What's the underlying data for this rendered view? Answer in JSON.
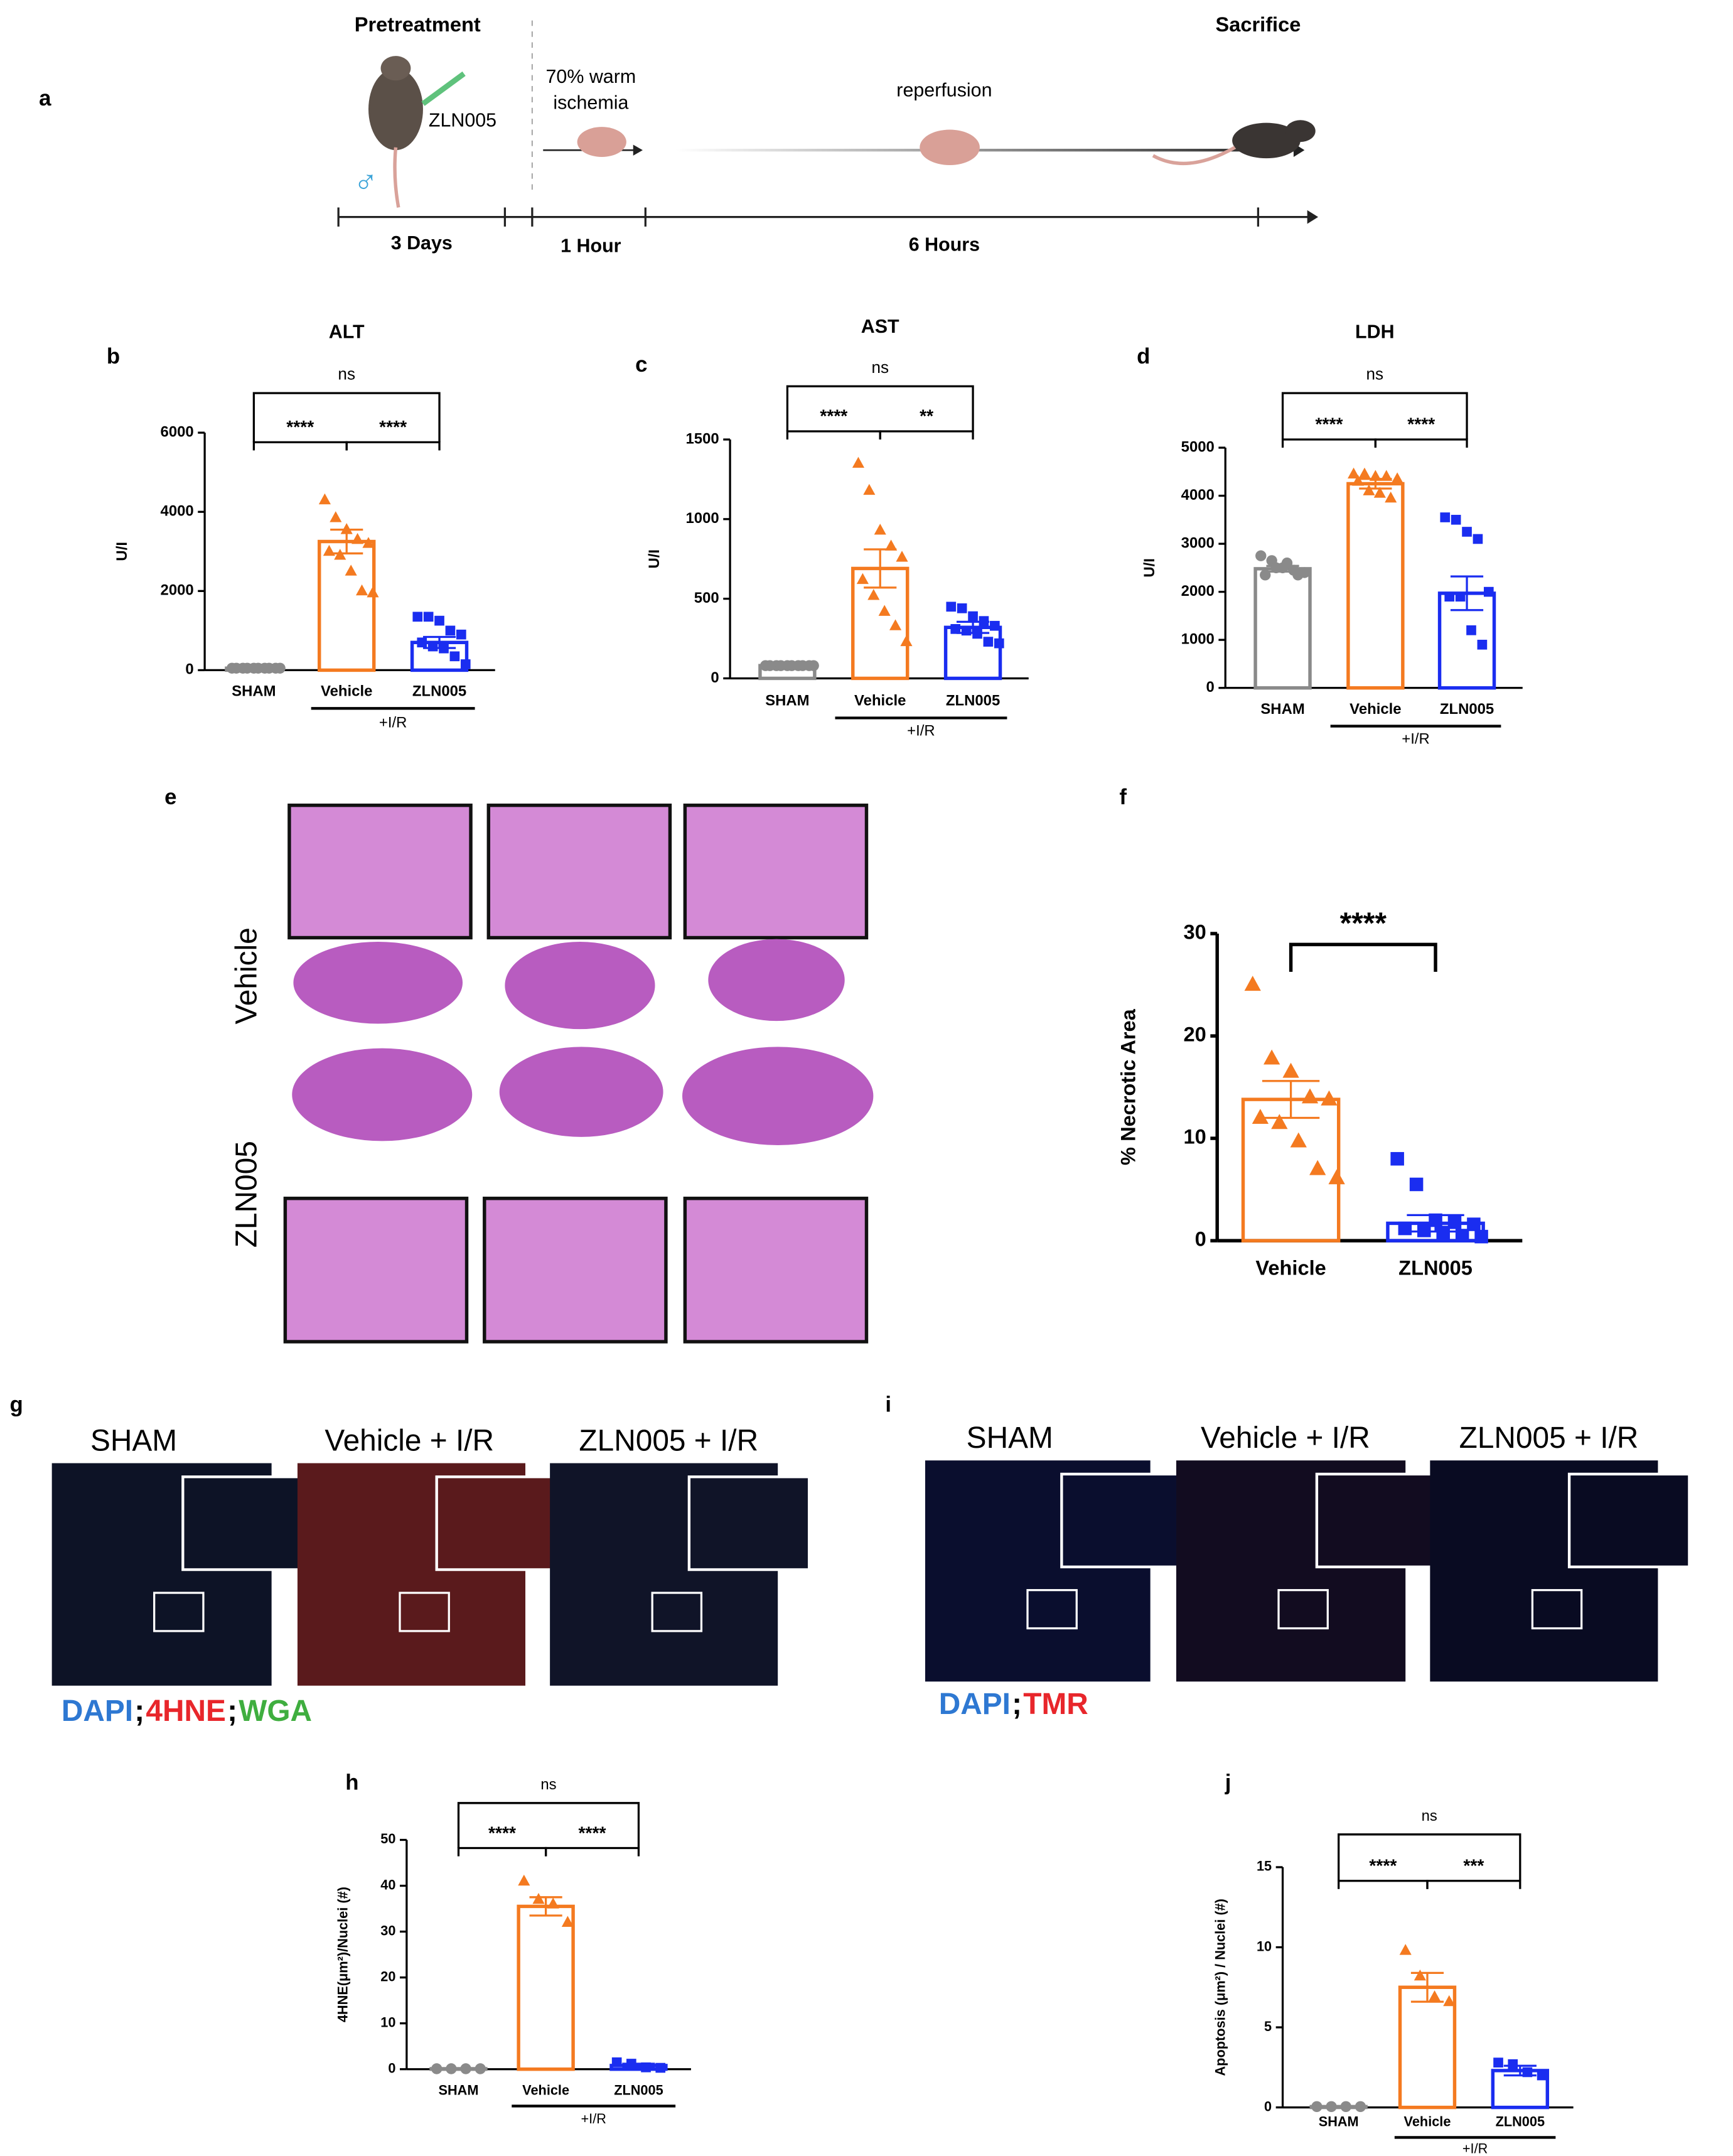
{
  "figure": {
    "panel_labels": [
      "a",
      "b",
      "c",
      "d",
      "e",
      "f",
      "g",
      "h",
      "i",
      "j"
    ]
  },
  "diagram": {
    "pretreatment": "Pretreatment",
    "drug": "ZLN005",
    "sex": "♂",
    "ischemia": [
      "70% warm",
      "ischemia"
    ],
    "reperfusion": "reperfusion",
    "sacrifice": "Sacrifice",
    "durations": [
      "3 Days",
      "1 Hour",
      "6 Hours"
    ]
  },
  "histology": {
    "rows": [
      "Vehicle",
      "ZLN005"
    ]
  },
  "immunofluorescence": [
    {
      "columns": [
        "SHAM",
        "Vehicle + I/R",
        "ZLN005 + I/R"
      ],
      "stains": [
        {
          "text": "DAPI",
          "color": "#2e78d2"
        },
        {
          "text": ";",
          "color": "#000000"
        },
        {
          "text": "4HNE",
          "color": "#e8262b"
        },
        {
          "text": ";",
          "color": "#000000"
        },
        {
          "text": "WGA",
          "color": "#3fae3f"
        }
      ]
    },
    {
      "columns": [
        "SHAM",
        "Vehicle + I/R",
        "ZLN005 + I/R"
      ],
      "stains": [
        {
          "text": "DAPI",
          "color": "#2e78d2"
        },
        {
          "text": ";",
          "color": "#000000"
        },
        {
          "text": "TMR",
          "color": "#e8262b"
        }
      ]
    }
  ],
  "chart_data": [
    {
      "type": "bar",
      "title": "ALT",
      "y_label": "U/I",
      "categories": [
        "SHAM",
        "Vehicle",
        "ZLN005"
      ],
      "group_label": "+I/R",
      "colors": [
        "#8a8a8a",
        "#f47a20",
        "#1a2df0"
      ],
      "markers": [
        "circle",
        "triangle",
        "square"
      ],
      "values": [
        50,
        3250,
        700
      ],
      "errors": [
        10,
        300,
        140
      ],
      "points": [
        [
          50,
          50,
          50,
          50,
          50,
          50,
          50,
          50,
          50,
          50
        ],
        [
          4300,
          3850,
          3550,
          3300,
          3200,
          3000,
          2900,
          2500,
          2000,
          1950
        ],
        [
          1350,
          1350,
          1250,
          1000,
          900,
          700,
          600,
          550,
          350,
          150
        ]
      ],
      "ylim": [
        0,
        6000
      ],
      "yticks": [
        0,
        2000,
        4000,
        6000
      ],
      "comparisons": [
        {
          "pair": [
            0,
            1
          ],
          "label": "****"
        },
        {
          "pair": [
            1,
            2
          ],
          "label": "****"
        },
        {
          "pair": [
            0,
            2
          ],
          "label": "ns"
        }
      ]
    },
    {
      "type": "bar",
      "title": "AST",
      "y_label": "U/I",
      "categories": [
        "SHAM",
        "Vehicle",
        "ZLN005"
      ],
      "group_label": "+I/R",
      "colors": [
        "#8a8a8a",
        "#f47a20",
        "#1a2df0"
      ],
      "markers": [
        "circle",
        "triangle",
        "square"
      ],
      "values": [
        80,
        690,
        320
      ],
      "errors": [
        5,
        120,
        35
      ],
      "points": [
        [
          80,
          80,
          80,
          80,
          80,
          80,
          80,
          80,
          80,
          80
        ],
        [
          1350,
          1180,
          930,
          830,
          760,
          620,
          520,
          420,
          330,
          230
        ],
        [
          450,
          440,
          390,
          360,
          330,
          310,
          300,
          280,
          230,
          220
        ]
      ],
      "ylim": [
        0,
        1500
      ],
      "yticks": [
        0,
        500,
        1000,
        1500
      ],
      "comparisons": [
        {
          "pair": [
            0,
            1
          ],
          "label": "****"
        },
        {
          "pair": [
            1,
            2
          ],
          "label": "**"
        },
        {
          "pair": [
            0,
            2
          ],
          "label": "ns"
        }
      ]
    },
    {
      "type": "bar",
      "title": "LDH",
      "y_label": "U/I",
      "categories": [
        "SHAM",
        "Vehicle",
        "ZLN005"
      ],
      "group_label": "+I/R",
      "colors": [
        "#8a8a8a",
        "#f47a20",
        "#1a2df0"
      ],
      "markers": [
        "circle",
        "triangle",
        "square"
      ],
      "values": [
        2480,
        4250,
        1970
      ],
      "errors": [
        60,
        100,
        350
      ],
      "points": [
        [
          2750,
          2650,
          2500,
          2450,
          2400,
          2350,
          2500,
          2600,
          2350
        ],
        [
          4450,
          4450,
          4400,
          4400,
          4350,
          4300,
          4100,
          4050,
          3950
        ],
        [
          3550,
          3500,
          3250,
          3100,
          2000,
          1900,
          1900,
          1200,
          900
        ]
      ],
      "ylim": [
        0,
        5000
      ],
      "yticks": [
        0,
        1000,
        2000,
        3000,
        4000,
        5000
      ],
      "comparisons": [
        {
          "pair": [
            0,
            1
          ],
          "label": "****"
        },
        {
          "pair": [
            1,
            2
          ],
          "label": "****"
        },
        {
          "pair": [
            0,
            2
          ],
          "label": "ns"
        }
      ]
    },
    {
      "type": "bar",
      "y_label": "% Necrotic Area",
      "categories": [
        "Vehicle",
        "ZLN005"
      ],
      "colors": [
        "#f47a20",
        "#1a2df0"
      ],
      "markers": [
        "triangle",
        "square"
      ],
      "values": [
        13.8,
        1.7
      ],
      "errors": [
        1.8,
        0.8
      ],
      "points": [
        [
          25,
          17.8,
          16.5,
          14,
          13.8,
          12,
          11.5,
          9.7,
          7,
          6.1
        ],
        [
          8,
          5.5,
          2,
          1.8,
          1.6,
          1.2,
          1,
          0.8,
          0.5,
          0.4
        ]
      ],
      "ylim": [
        0,
        30
      ],
      "yticks": [
        0,
        10,
        20,
        30
      ],
      "comparisons": [
        {
          "pair": [
            0,
            1
          ],
          "label": "****"
        }
      ]
    },
    {
      "type": "bar",
      "y_label": "4HNE(μm²)/Nuclei (#)",
      "categories": [
        "SHAM",
        "Vehicle",
        "ZLN005"
      ],
      "group_label": "+I/R",
      "colors": [
        "#8a8a8a",
        "#f47a20",
        "#1a2df0"
      ],
      "markers": [
        "circle",
        "triangle",
        "square"
      ],
      "values": [
        0.1,
        35.5,
        0.8
      ],
      "errors": [
        0.05,
        2,
        0.4
      ],
      "points": [
        [
          0.1,
          0.1,
          0.1,
          0.1
        ],
        [
          41,
          37,
          36,
          32
        ],
        [
          1.5,
          1.2,
          0.4,
          0.3
        ]
      ],
      "ylim": [
        0,
        50
      ],
      "yticks": [
        0,
        10,
        20,
        30,
        40,
        50
      ],
      "comparisons": [
        {
          "pair": [
            0,
            1
          ],
          "label": "****"
        },
        {
          "pair": [
            1,
            2
          ],
          "label": "****"
        },
        {
          "pair": [
            0,
            2
          ],
          "label": "ns"
        }
      ]
    },
    {
      "type": "bar",
      "y_label": "Apoptosis (μm²) / Nuclei (#)",
      "categories": [
        "SHAM",
        "Vehicle",
        "ZLN005"
      ],
      "group_label": "+I/R",
      "colors": [
        "#8a8a8a",
        "#f47a20",
        "#1a2df0"
      ],
      "markers": [
        "circle",
        "triangle",
        "square"
      ],
      "values": [
        0.05,
        7.5,
        2.3
      ],
      "errors": [
        0.02,
        0.9,
        0.3
      ],
      "points": [
        [
          0.05,
          0.05,
          0.05,
          0.05
        ],
        [
          9.8,
          8.2,
          6.9,
          6.6
        ],
        [
          2.8,
          2.7,
          2.2,
          2
        ]
      ],
      "ylim": [
        0,
        15
      ],
      "yticks": [
        0,
        5,
        10,
        15
      ],
      "comparisons": [
        {
          "pair": [
            0,
            1
          ],
          "label": "****"
        },
        {
          "pair": [
            1,
            2
          ],
          "label": "***"
        },
        {
          "pair": [
            0,
            2
          ],
          "label": "ns"
        }
      ]
    }
  ]
}
